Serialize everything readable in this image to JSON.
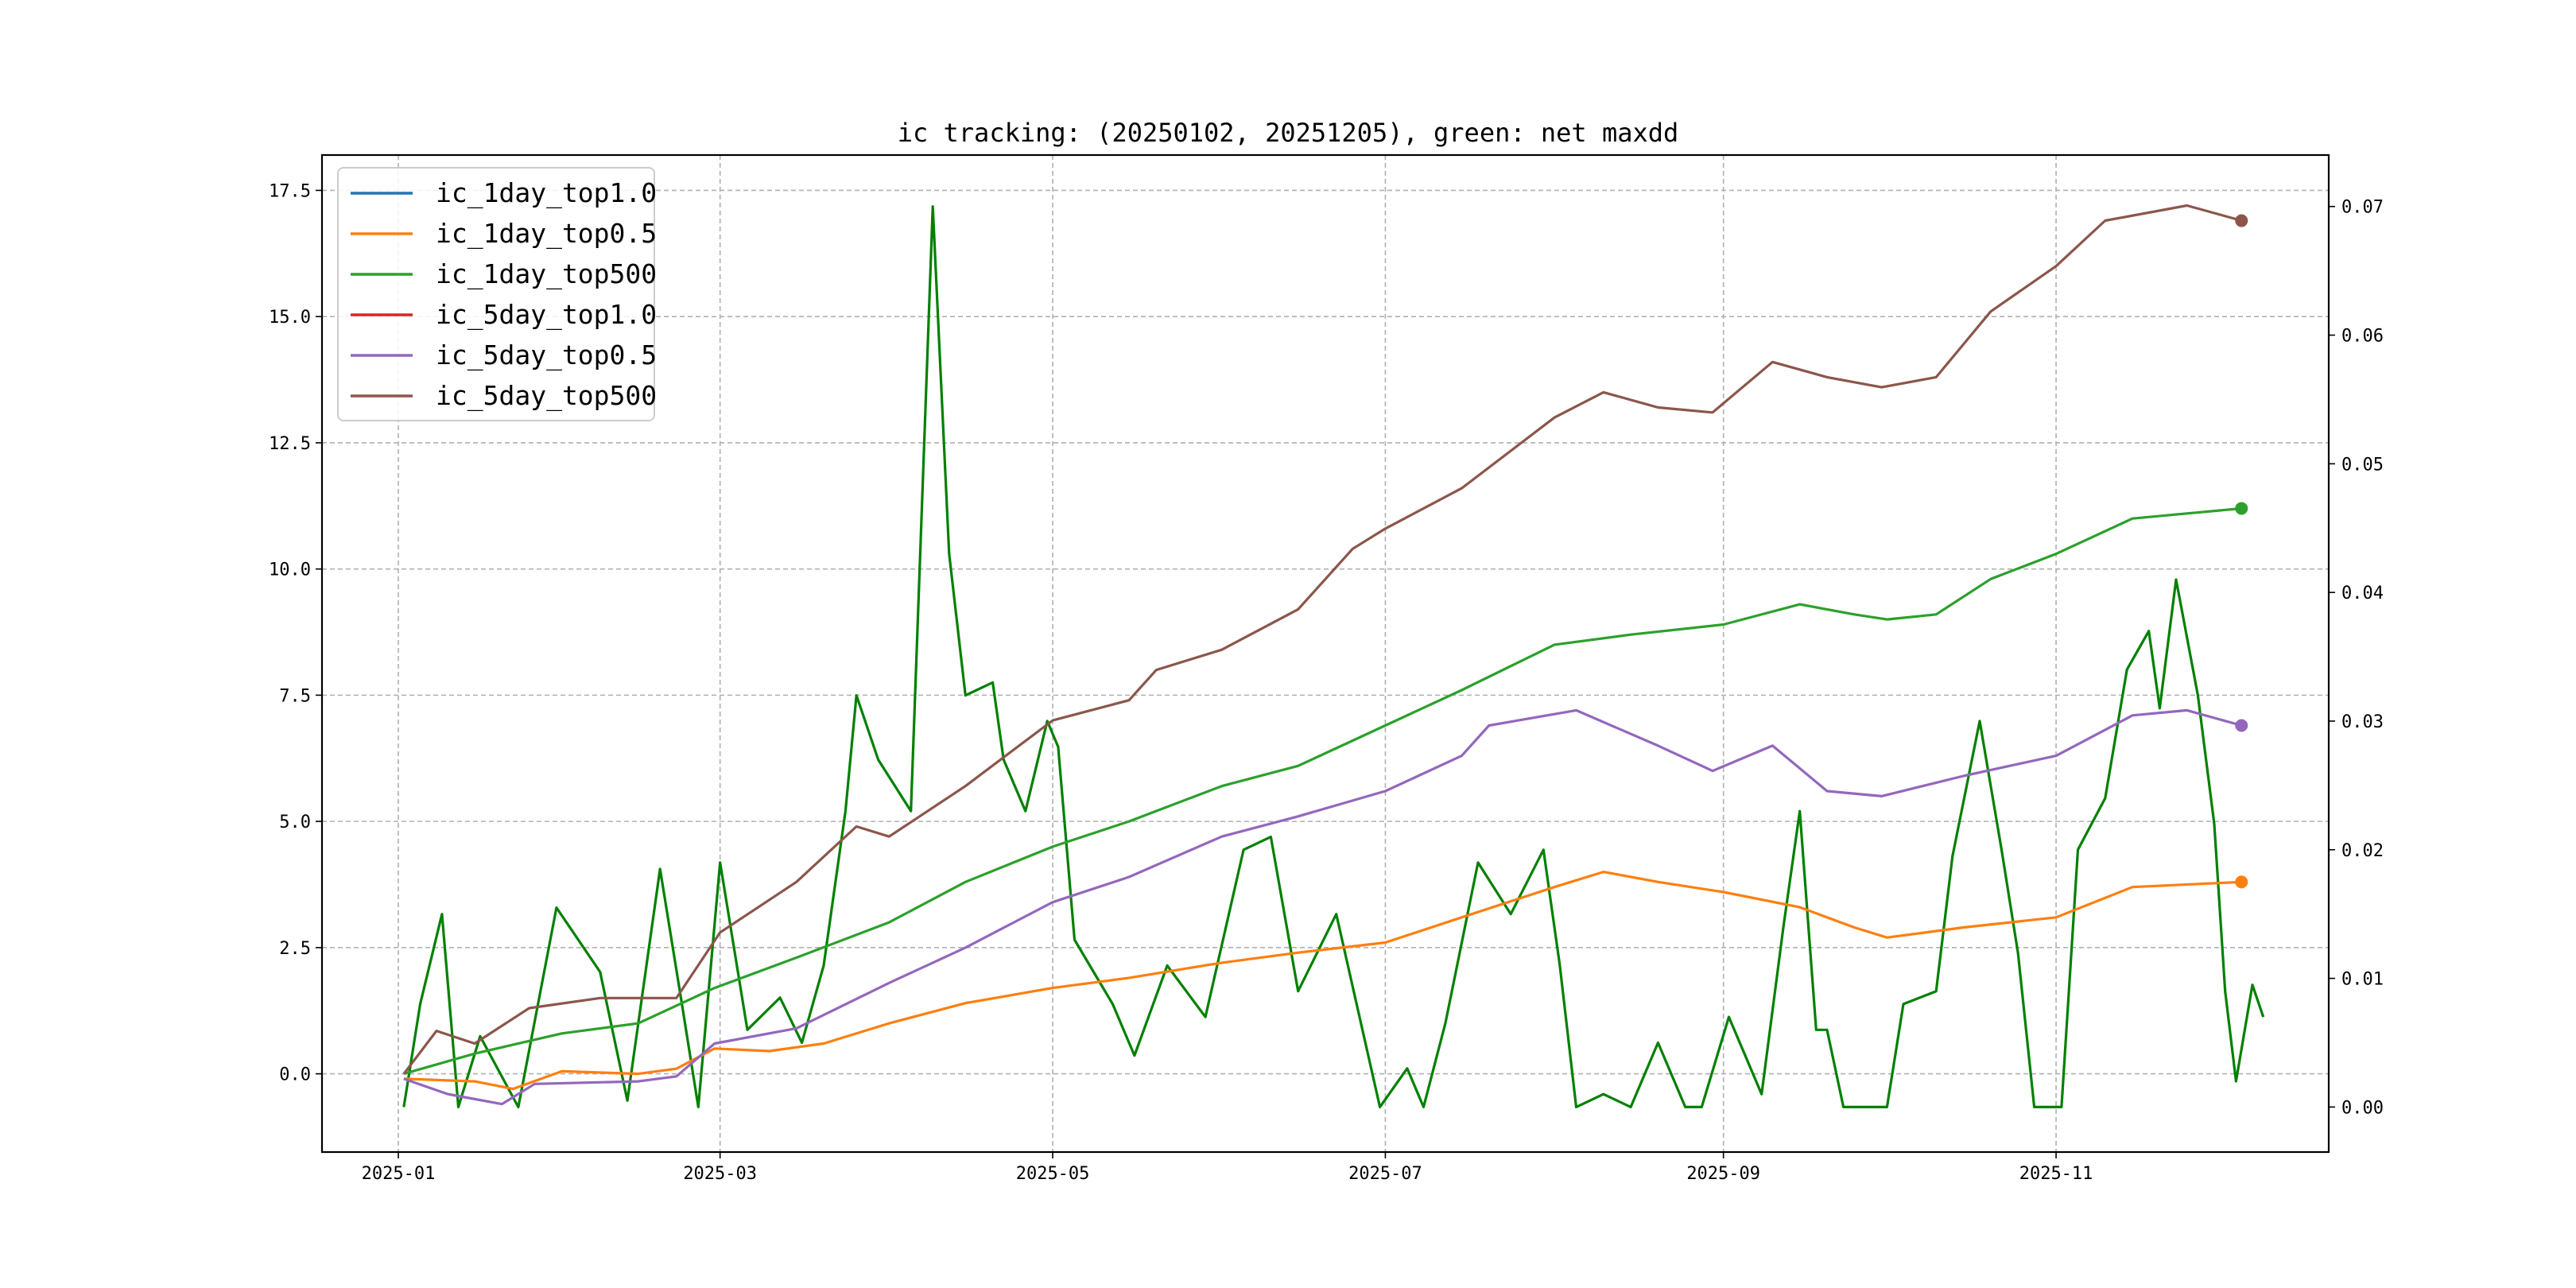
{
  "chart_data": {
    "type": "line",
    "title": "ic tracking: (20250102, 20251205), green: net maxdd",
    "xlabel": "",
    "ylabel": "",
    "x_range": [
      "2024-12-18",
      "2025-12-21"
    ],
    "x_ticks": [
      {
        "date": "2025-01-01",
        "label": "2025-01"
      },
      {
        "date": "2025-03-01",
        "label": "2025-03"
      },
      {
        "date": "2025-05-01",
        "label": "2025-05"
      },
      {
        "date": "2025-07-01",
        "label": "2025-07"
      },
      {
        "date": "2025-09-01",
        "label": "2025-09"
      },
      {
        "date": "2025-11-01",
        "label": "2025-11"
      }
    ],
    "y_left": {
      "ylim": [
        -1.55,
        18.2
      ],
      "ticks": [
        {
          "value": 0.0,
          "label": "0.0"
        },
        {
          "value": 2.5,
          "label": "2.5"
        },
        {
          "value": 5.0,
          "label": "5.0"
        },
        {
          "value": 7.5,
          "label": "7.5"
        },
        {
          "value": 10.0,
          "label": "10.0"
        },
        {
          "value": 12.5,
          "label": "12.5"
        },
        {
          "value": 15.0,
          "label": "15.0"
        },
        {
          "value": 17.5,
          "label": "17.5"
        }
      ]
    },
    "y_right": {
      "ylim": [
        -0.0035,
        0.074
      ],
      "ticks": [
        {
          "value": 0.0,
          "label": "0.00"
        },
        {
          "value": 0.01,
          "label": "0.01"
        },
        {
          "value": 0.02,
          "label": "0.02"
        },
        {
          "value": 0.03,
          "label": "0.03"
        },
        {
          "value": 0.04,
          "label": "0.04"
        },
        {
          "value": 0.05,
          "label": "0.05"
        },
        {
          "value": 0.06,
          "label": "0.06"
        },
        {
          "value": 0.07,
          "label": "0.07"
        }
      ]
    },
    "grid": true,
    "legend_position": "top-left",
    "series": [
      {
        "name": "ic_1day_top1.0",
        "color": "#1f77b4",
        "axis": "left",
        "end_marker": false,
        "points": []
      },
      {
        "name": "ic_1day_top0.5",
        "color": "#ff7f0e",
        "axis": "left",
        "end_marker": true,
        "points": [
          [
            "2025-01-02",
            -0.1
          ],
          [
            "2025-01-15",
            -0.15
          ],
          [
            "2025-01-22",
            -0.3
          ],
          [
            "2025-01-31",
            0.05
          ],
          [
            "2025-02-14",
            0.0
          ],
          [
            "2025-02-21",
            0.1
          ],
          [
            "2025-02-28",
            0.5
          ],
          [
            "2025-03-10",
            0.45
          ],
          [
            "2025-03-20",
            0.6
          ],
          [
            "2025-04-01",
            1.0
          ],
          [
            "2025-04-15",
            1.4
          ],
          [
            "2025-05-01",
            1.7
          ],
          [
            "2025-05-15",
            1.9
          ],
          [
            "2025-06-01",
            2.2
          ],
          [
            "2025-06-15",
            2.4
          ],
          [
            "2025-07-01",
            2.6
          ],
          [
            "2025-07-15",
            3.1
          ],
          [
            "2025-08-01",
            3.7
          ],
          [
            "2025-08-10",
            4.0
          ],
          [
            "2025-08-20",
            3.8
          ],
          [
            "2025-09-01",
            3.6
          ],
          [
            "2025-09-15",
            3.3
          ],
          [
            "2025-09-25",
            2.9
          ],
          [
            "2025-10-01",
            2.7
          ],
          [
            "2025-10-15",
            2.9
          ],
          [
            "2025-11-01",
            3.1
          ],
          [
            "2025-11-15",
            3.7
          ],
          [
            "2025-12-05",
            3.8
          ]
        ]
      },
      {
        "name": "ic_1day_top500",
        "color": "#2ca02c",
        "axis": "left",
        "end_marker": true,
        "points": [
          [
            "2025-01-02",
            0.0
          ],
          [
            "2025-01-15",
            0.4
          ],
          [
            "2025-01-31",
            0.8
          ],
          [
            "2025-02-14",
            1.0
          ],
          [
            "2025-02-28",
            1.7
          ],
          [
            "2025-03-15",
            2.3
          ],
          [
            "2025-04-01",
            3.0
          ],
          [
            "2025-04-15",
            3.8
          ],
          [
            "2025-05-01",
            4.5
          ],
          [
            "2025-05-15",
            5.0
          ],
          [
            "2025-06-01",
            5.7
          ],
          [
            "2025-06-15",
            6.1
          ],
          [
            "2025-07-01",
            6.9
          ],
          [
            "2025-07-15",
            7.6
          ],
          [
            "2025-08-01",
            8.5
          ],
          [
            "2025-08-15",
            8.7
          ],
          [
            "2025-09-01",
            8.9
          ],
          [
            "2025-09-15",
            9.3
          ],
          [
            "2025-09-25",
            9.1
          ],
          [
            "2025-10-01",
            9.0
          ],
          [
            "2025-10-10",
            9.1
          ],
          [
            "2025-10-20",
            9.8
          ],
          [
            "2025-11-01",
            10.3
          ],
          [
            "2025-11-15",
            11.0
          ],
          [
            "2025-11-25",
            11.1
          ],
          [
            "2025-12-05",
            11.2
          ]
        ]
      },
      {
        "name": "ic_5day_top1.0",
        "color": "#d62728",
        "axis": "left",
        "end_marker": false,
        "points": []
      },
      {
        "name": "ic_5day_top0.5",
        "color": "#9467bd",
        "axis": "left",
        "end_marker": true,
        "points": [
          [
            "2025-01-02",
            -0.1
          ],
          [
            "2025-01-10",
            -0.4
          ],
          [
            "2025-01-20",
            -0.6
          ],
          [
            "2025-01-26",
            -0.2
          ],
          [
            "2025-02-14",
            -0.15
          ],
          [
            "2025-02-21",
            -0.05
          ],
          [
            "2025-02-28",
            0.6
          ],
          [
            "2025-03-15",
            0.9
          ],
          [
            "2025-04-01",
            1.8
          ],
          [
            "2025-04-15",
            2.5
          ],
          [
            "2025-05-01",
            3.4
          ],
          [
            "2025-05-15",
            3.9
          ],
          [
            "2025-06-01",
            4.7
          ],
          [
            "2025-06-15",
            5.1
          ],
          [
            "2025-07-01",
            5.6
          ],
          [
            "2025-07-15",
            6.3
          ],
          [
            "2025-07-20",
            6.9
          ],
          [
            "2025-08-05",
            7.2
          ],
          [
            "2025-08-20",
            6.5
          ],
          [
            "2025-08-30",
            6.0
          ],
          [
            "2025-09-10",
            6.5
          ],
          [
            "2025-09-20",
            5.6
          ],
          [
            "2025-09-30",
            5.5
          ],
          [
            "2025-10-15",
            5.9
          ],
          [
            "2025-11-01",
            6.3
          ],
          [
            "2025-11-15",
            7.1
          ],
          [
            "2025-11-25",
            7.2
          ],
          [
            "2025-12-05",
            6.9
          ]
        ]
      },
      {
        "name": "ic_5day_top500",
        "color": "#8c564b",
        "axis": "left",
        "end_marker": true,
        "points": [
          [
            "2025-01-02",
            0.0
          ],
          [
            "2025-01-08",
            0.85
          ],
          [
            "2025-01-15",
            0.6
          ],
          [
            "2025-01-25",
            1.3
          ],
          [
            "2025-02-07",
            1.5
          ],
          [
            "2025-02-21",
            1.5
          ],
          [
            "2025-03-01",
            2.8
          ],
          [
            "2025-03-15",
            3.8
          ],
          [
            "2025-03-26",
            4.9
          ],
          [
            "2025-04-01",
            4.7
          ],
          [
            "2025-04-15",
            5.7
          ],
          [
            "2025-05-01",
            7.0
          ],
          [
            "2025-05-15",
            7.4
          ],
          [
            "2025-05-20",
            8.0
          ],
          [
            "2025-06-01",
            8.4
          ],
          [
            "2025-06-15",
            9.2
          ],
          [
            "2025-06-25",
            10.4
          ],
          [
            "2025-07-01",
            10.8
          ],
          [
            "2025-07-15",
            11.6
          ],
          [
            "2025-08-01",
            13.0
          ],
          [
            "2025-08-10",
            13.5
          ],
          [
            "2025-08-20",
            13.2
          ],
          [
            "2025-08-30",
            13.1
          ],
          [
            "2025-09-10",
            14.1
          ],
          [
            "2025-09-20",
            13.8
          ],
          [
            "2025-09-30",
            13.6
          ],
          [
            "2025-10-10",
            13.8
          ],
          [
            "2025-10-20",
            15.1
          ],
          [
            "2025-11-01",
            16.0
          ],
          [
            "2025-11-10",
            16.9
          ],
          [
            "2025-11-25",
            17.2
          ],
          [
            "2025-12-05",
            16.9
          ]
        ]
      },
      {
        "name": "net maxdd",
        "color": "#008000",
        "axis": "right",
        "end_marker": false,
        "points": [
          [
            "2025-01-02",
            0.0
          ],
          [
            "2025-01-05",
            0.008
          ],
          [
            "2025-01-09",
            0.015
          ],
          [
            "2025-01-12",
            0.0
          ],
          [
            "2025-01-16",
            0.0055
          ],
          [
            "2025-01-23",
            0.0
          ],
          [
            "2025-01-30",
            0.0155
          ],
          [
            "2025-02-07",
            0.0105
          ],
          [
            "2025-02-12",
            0.0005
          ],
          [
            "2025-02-18",
            0.0185
          ],
          [
            "2025-02-22",
            0.008
          ],
          [
            "2025-02-25",
            0.0
          ],
          [
            "2025-03-01",
            0.019
          ],
          [
            "2025-03-06",
            0.006
          ],
          [
            "2025-03-12",
            0.0085
          ],
          [
            "2025-03-16",
            0.005
          ],
          [
            "2025-03-20",
            0.011
          ],
          [
            "2025-03-24",
            0.023
          ],
          [
            "2025-03-26",
            0.032
          ],
          [
            "2025-03-30",
            0.027
          ],
          [
            "2025-04-05",
            0.023
          ],
          [
            "2025-04-09",
            0.07
          ],
          [
            "2025-04-12",
            0.043
          ],
          [
            "2025-04-15",
            0.032
          ],
          [
            "2025-04-20",
            0.033
          ],
          [
            "2025-04-22",
            0.027
          ],
          [
            "2025-04-26",
            0.023
          ],
          [
            "2025-04-30",
            0.03
          ],
          [
            "2025-05-02",
            0.028
          ],
          [
            "2025-05-05",
            0.013
          ],
          [
            "2025-05-12",
            0.008
          ],
          [
            "2025-05-16",
            0.004
          ],
          [
            "2025-05-22",
            0.011
          ],
          [
            "2025-05-29",
            0.007
          ],
          [
            "2025-06-05",
            0.02
          ],
          [
            "2025-06-10",
            0.021
          ],
          [
            "2025-06-15",
            0.009
          ],
          [
            "2025-06-22",
            0.015
          ],
          [
            "2025-06-30",
            0.0
          ],
          [
            "2025-07-05",
            0.003
          ],
          [
            "2025-07-08",
            0.0
          ],
          [
            "2025-07-12",
            0.0065
          ],
          [
            "2025-07-18",
            0.019
          ],
          [
            "2025-07-24",
            0.015
          ],
          [
            "2025-07-30",
            0.02
          ],
          [
            "2025-08-02",
            0.011
          ],
          [
            "2025-08-05",
            0.0
          ],
          [
            "2025-08-10",
            0.001
          ],
          [
            "2025-08-15",
            0.0
          ],
          [
            "2025-08-20",
            0.005
          ],
          [
            "2025-08-25",
            0.0
          ],
          [
            "2025-08-28",
            0.0
          ],
          [
            "2025-09-02",
            0.007
          ],
          [
            "2025-09-08",
            0.001
          ],
          [
            "2025-09-12",
            0.014
          ],
          [
            "2025-09-15",
            0.023
          ],
          [
            "2025-09-18",
            0.006
          ],
          [
            "2025-09-20",
            0.006
          ],
          [
            "2025-09-23",
            0.0
          ],
          [
            "2025-10-01",
            0.0
          ],
          [
            "2025-10-04",
            0.008
          ],
          [
            "2025-10-10",
            0.009
          ],
          [
            "2025-10-13",
            0.0195
          ],
          [
            "2025-10-18",
            0.03
          ],
          [
            "2025-10-22",
            0.02
          ],
          [
            "2025-10-25",
            0.012
          ],
          [
            "2025-10-28",
            0.0
          ],
          [
            "2025-11-02",
            0.0
          ],
          [
            "2025-11-05",
            0.02
          ],
          [
            "2025-11-10",
            0.024
          ],
          [
            "2025-11-14",
            0.034
          ],
          [
            "2025-11-18",
            0.037
          ],
          [
            "2025-11-20",
            0.031
          ],
          [
            "2025-11-23",
            0.041
          ],
          [
            "2025-11-27",
            0.032
          ],
          [
            "2025-11-30",
            0.022
          ],
          [
            "2025-12-02",
            0.009
          ],
          [
            "2025-12-04",
            0.002
          ],
          [
            "2025-12-07",
            0.0095
          ],
          [
            "2025-12-09",
            0.007
          ]
        ]
      }
    ]
  }
}
